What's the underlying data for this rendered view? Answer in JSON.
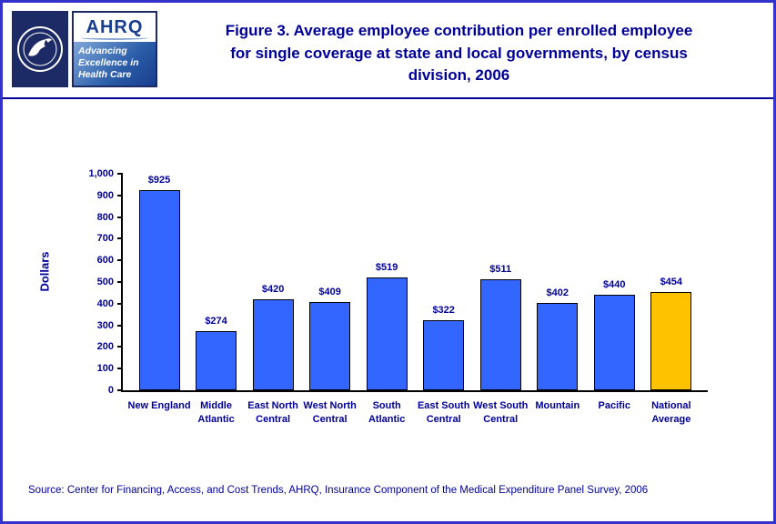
{
  "header": {
    "title": "Figure 3. Average employee contribution per enrolled employee for single coverage at state and local governments, by census division, 2006",
    "hhs_seal_alt": "Department of Health & Human Services USA",
    "ahrq": {
      "name": "AHRQ",
      "tagline": "Advancing Excellence in Health Care"
    }
  },
  "chart_data": {
    "type": "bar",
    "title": "Figure 3. Average employee contribution per enrolled employee for single coverage at state and local governments, by census division, 2006",
    "categories": [
      "New England",
      "Middle Atlantic",
      "East North Central",
      "West North Central",
      "South Atlantic",
      "East South Central",
      "West South Central",
      "Mountain",
      "Pacific",
      "National Average"
    ],
    "values": [
      925,
      274,
      420,
      409,
      519,
      322,
      511,
      402,
      440,
      454
    ],
    "value_labels": [
      "$925",
      "$274",
      "$420",
      "$409",
      "$519",
      "$322",
      "$511",
      "$402",
      "$440",
      "$454"
    ],
    "xlabel": "",
    "ylabel": "Dollars",
    "ylim": [
      0,
      1000
    ],
    "yticks": [
      0,
      100,
      200,
      300,
      400,
      500,
      600,
      700,
      800,
      900,
      1000
    ],
    "ytick_labels": [
      "0",
      "100",
      "200",
      "300",
      "400",
      "500",
      "600",
      "700",
      "800",
      "900",
      "1,000"
    ],
    "grid": false,
    "legend": "none",
    "bar_color": "#3366FF",
    "highlight_color": "#FFC200",
    "highlight_index": 9
  },
  "footer": {
    "source": "Source: Center for Financing, Access, and Cost Trends, AHRQ, Insurance Component of the Medical Expenditure Panel Survey, 2006"
  },
  "colors": {
    "accent_navy": "#000099",
    "page_border": "#3333CC",
    "axis_black": "#000000"
  }
}
